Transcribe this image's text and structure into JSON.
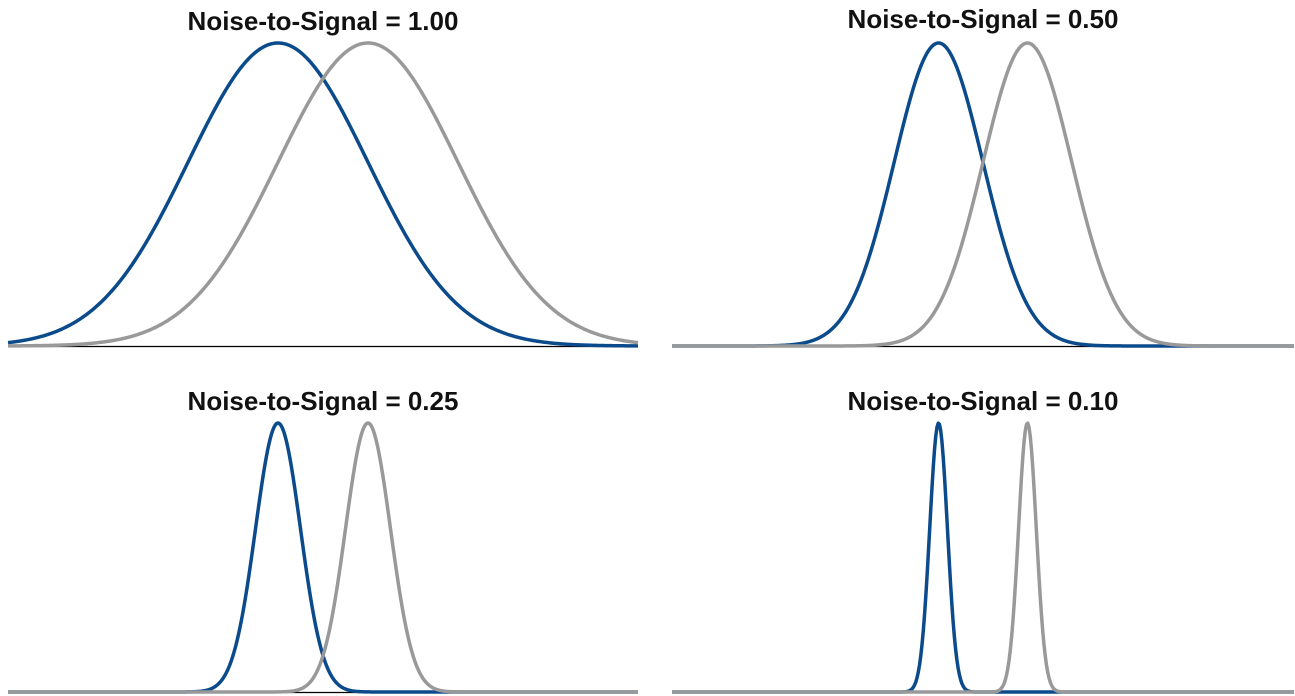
{
  "colors": {
    "series_a": "#0b4a8b",
    "series_b": "#999999",
    "baseline": "#000000"
  },
  "chart_data": [
    {
      "type": "line",
      "title": "Noise-to-Signal = 1.00",
      "noise_to_signal": 1.0,
      "xlim": [
        -3,
        4
      ],
      "ylim": [
        0,
        1
      ],
      "series": [
        {
          "mean": 0,
          "sigma": 1.0,
          "peak": 1,
          "color": "#0b4a8b"
        },
        {
          "mean": 1,
          "sigma": 1.0,
          "peak": 1,
          "color": "#999999"
        }
      ]
    },
    {
      "type": "line",
      "title": "Noise-to-Signal = 0.50",
      "noise_to_signal": 0.5,
      "xlim": [
        -3,
        4
      ],
      "ylim": [
        0,
        1
      ],
      "series": [
        {
          "mean": 0,
          "sigma": 0.5,
          "peak": 1,
          "color": "#0b4a8b"
        },
        {
          "mean": 1,
          "sigma": 0.5,
          "peak": 1,
          "color": "#999999"
        }
      ]
    },
    {
      "type": "line",
      "title": "Noise-to-Signal = 0.25",
      "noise_to_signal": 0.25,
      "xlim": [
        -3,
        4
      ],
      "ylim": [
        0,
        1
      ],
      "series": [
        {
          "mean": 0,
          "sigma": 0.25,
          "peak": 1,
          "color": "#0b4a8b"
        },
        {
          "mean": 1,
          "sigma": 0.25,
          "peak": 1,
          "color": "#999999"
        }
      ]
    },
    {
      "type": "line",
      "title": "Noise-to-Signal = 0.10",
      "noise_to_signal": 0.1,
      "xlim": [
        -3,
        4
      ],
      "ylim": [
        0,
        1
      ],
      "series": [
        {
          "mean": 0,
          "sigma": 0.1,
          "peak": 1,
          "color": "#0b4a8b"
        },
        {
          "mean": 1,
          "sigma": 0.1,
          "peak": 1,
          "color": "#999999"
        }
      ]
    }
  ]
}
